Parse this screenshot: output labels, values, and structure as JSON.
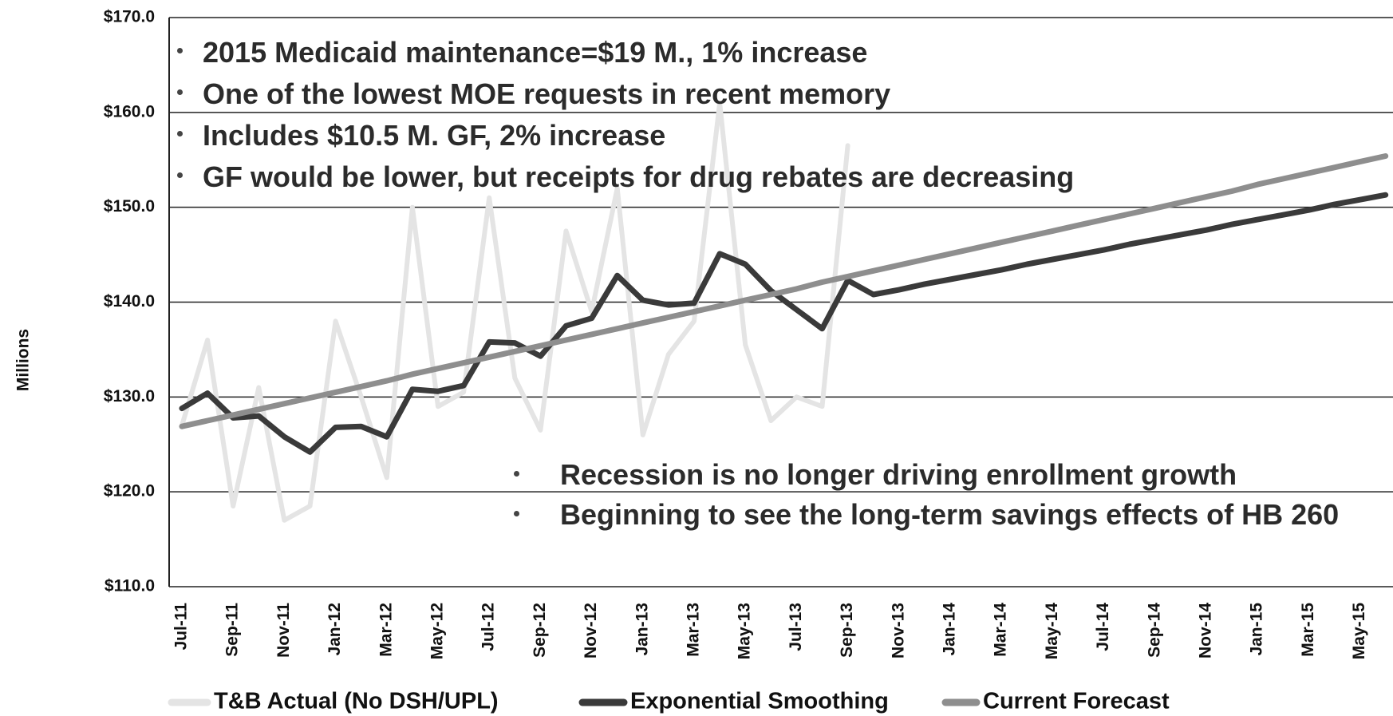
{
  "chart_data": {
    "type": "line",
    "y_label": "Millions",
    "categories": [
      "Jul-11",
      null,
      "Sep-11",
      null,
      "Nov-11",
      null,
      "Jan-12",
      null,
      "Mar-12",
      null,
      "May-12",
      null,
      "Jul-12",
      null,
      "Sep-12",
      null,
      "Nov-12",
      null,
      "Jan-13",
      null,
      "Mar-13",
      null,
      "May-13",
      null,
      "Jul-13",
      null,
      "Sep-13",
      null,
      "Nov-13",
      null,
      "Jan-14",
      null,
      "Mar-14",
      null,
      "May-14",
      null,
      "Jul-14",
      null,
      "Sep-14",
      null,
      "Nov-14",
      null,
      "Jan-15",
      null,
      "Mar-15",
      null,
      "May-15",
      null
    ],
    "series": [
      {
        "name": "T&B Actual (No DSH/UPL)",
        "color": "#e4e4e4",
        "values": [
          127,
          136,
          118.5,
          131,
          117,
          118.5,
          138,
          130,
          121.5,
          150,
          129,
          130.5,
          151,
          132,
          126.5,
          147.5,
          139,
          152,
          126,
          134.5,
          138,
          161,
          135.5,
          127.5,
          130,
          129,
          156.5,
          null,
          null,
          null,
          null,
          null,
          null,
          null,
          null,
          null,
          null,
          null,
          null,
          null,
          null,
          null,
          null,
          null,
          null,
          null,
          null,
          null
        ]
      },
      {
        "name": "Exponential Smoothing",
        "color": "#3a3a3a",
        "values": [
          128.8,
          130.4,
          127.8,
          128.0,
          125.8,
          124.2,
          126.8,
          126.9,
          125.8,
          130.8,
          130.6,
          131.2,
          135.8,
          135.7,
          134.3,
          137.5,
          138.3,
          142.8,
          140.2,
          139.7,
          139.9,
          145.1,
          144.0,
          141.2,
          139.2,
          137.2,
          142.3,
          140.8,
          141.3,
          141.9,
          142.4,
          142.9,
          143.4,
          144.0,
          144.5,
          145.0,
          145.5,
          146.1,
          146.6,
          147.1,
          147.6,
          148.2,
          148.7,
          149.2,
          149.7,
          150.3,
          150.8,
          151.3
        ]
      },
      {
        "name": "Current Forecast",
        "color": "#8e8e8e",
        "values": [
          126.9,
          127.5,
          128.1,
          128.7,
          129.3,
          129.9,
          130.5,
          131.1,
          131.7,
          132.4,
          133.0,
          133.6,
          134.2,
          134.8,
          135.4,
          136.0,
          136.6,
          137.2,
          137.8,
          138.4,
          139.0,
          139.6,
          140.2,
          140.8,
          141.4,
          142.1,
          142.7,
          143.3,
          143.9,
          144.5,
          145.1,
          145.7,
          146.3,
          146.9,
          147.5,
          148.1,
          148.7,
          149.3,
          149.9,
          150.5,
          151.1,
          151.7,
          152.4,
          153.0,
          153.6,
          154.2,
          154.8,
          155.4
        ]
      }
    ],
    "ylim": [
      110,
      170
    ],
    "yticks": [
      {
        "value": 110,
        "label": "$110.0"
      },
      {
        "value": 120,
        "label": "$120.0"
      },
      {
        "value": 130,
        "label": "$130.0"
      },
      {
        "value": 140,
        "label": "$140.0"
      },
      {
        "value": 150,
        "label": "$150.0"
      },
      {
        "value": 160,
        "label": "$160.0"
      },
      {
        "value": 170,
        "label": "$170.0"
      }
    ],
    "grid": true,
    "legend": "bottom",
    "annotations": [
      [
        "2015 Medicaid maintenance=$19 M., 1% increase",
        "One of the lowest MOE requests in recent memory",
        "Includes $10.5 M. GF, 2% increase",
        "GF would be lower, but receipts for drug rebates are decreasing"
      ],
      [
        "Recession is no longer driving enrollment growth",
        "Beginning to see the long-term savings effects of HB 260"
      ]
    ]
  }
}
